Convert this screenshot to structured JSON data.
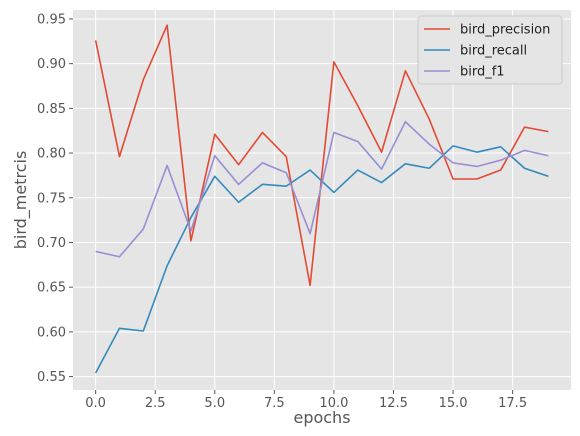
{
  "chart_data": {
    "type": "line",
    "xlabel": "epochs",
    "ylabel": "bird_metrcis",
    "xlim": [
      -0.95,
      19.95
    ],
    "ylim": [
      0.535,
      0.96
    ],
    "xticks": [
      0.0,
      2.5,
      5.0,
      7.5,
      10.0,
      12.5,
      15.0,
      17.5
    ],
    "xtick_labels": [
      "0.0",
      "2.5",
      "5.0",
      "7.5",
      "10.0",
      "12.5",
      "15.0",
      "17.5"
    ],
    "yticks": [
      0.55,
      0.6,
      0.65,
      0.7,
      0.75,
      0.8,
      0.85,
      0.9,
      0.95
    ],
    "ytick_labels": [
      "0.55",
      "0.60",
      "0.65",
      "0.70",
      "0.75",
      "0.80",
      "0.85",
      "0.90",
      "0.95"
    ],
    "grid": true,
    "legend_position": "top-right",
    "x": [
      0,
      1,
      2,
      3,
      4,
      5,
      6,
      7,
      8,
      9,
      10,
      11,
      12,
      13,
      14,
      15,
      16,
      17,
      18,
      19
    ],
    "series": [
      {
        "name": "bird_precision",
        "color": "#E24A33",
        "values": [
          0.926,
          0.796,
          0.882,
          0.943,
          0.702,
          0.821,
          0.787,
          0.823,
          0.796,
          0.652,
          0.902,
          0.853,
          0.801,
          0.892,
          0.838,
          0.771,
          0.771,
          0.781,
          0.829,
          0.824
        ]
      },
      {
        "name": "bird_recall",
        "color": "#348ABD",
        "values": [
          0.554,
          0.604,
          0.601,
          0.674,
          0.728,
          0.774,
          0.745,
          0.765,
          0.763,
          0.781,
          0.756,
          0.781,
          0.767,
          0.788,
          0.783,
          0.808,
          0.801,
          0.807,
          0.783,
          0.774
        ]
      },
      {
        "name": "bird_f1",
        "color": "#988ED5",
        "values": [
          0.69,
          0.684,
          0.715,
          0.786,
          0.713,
          0.797,
          0.765,
          0.789,
          0.778,
          0.71,
          0.823,
          0.813,
          0.782,
          0.835,
          0.81,
          0.789,
          0.785,
          0.792,
          0.803,
          0.797
        ]
      }
    ]
  }
}
